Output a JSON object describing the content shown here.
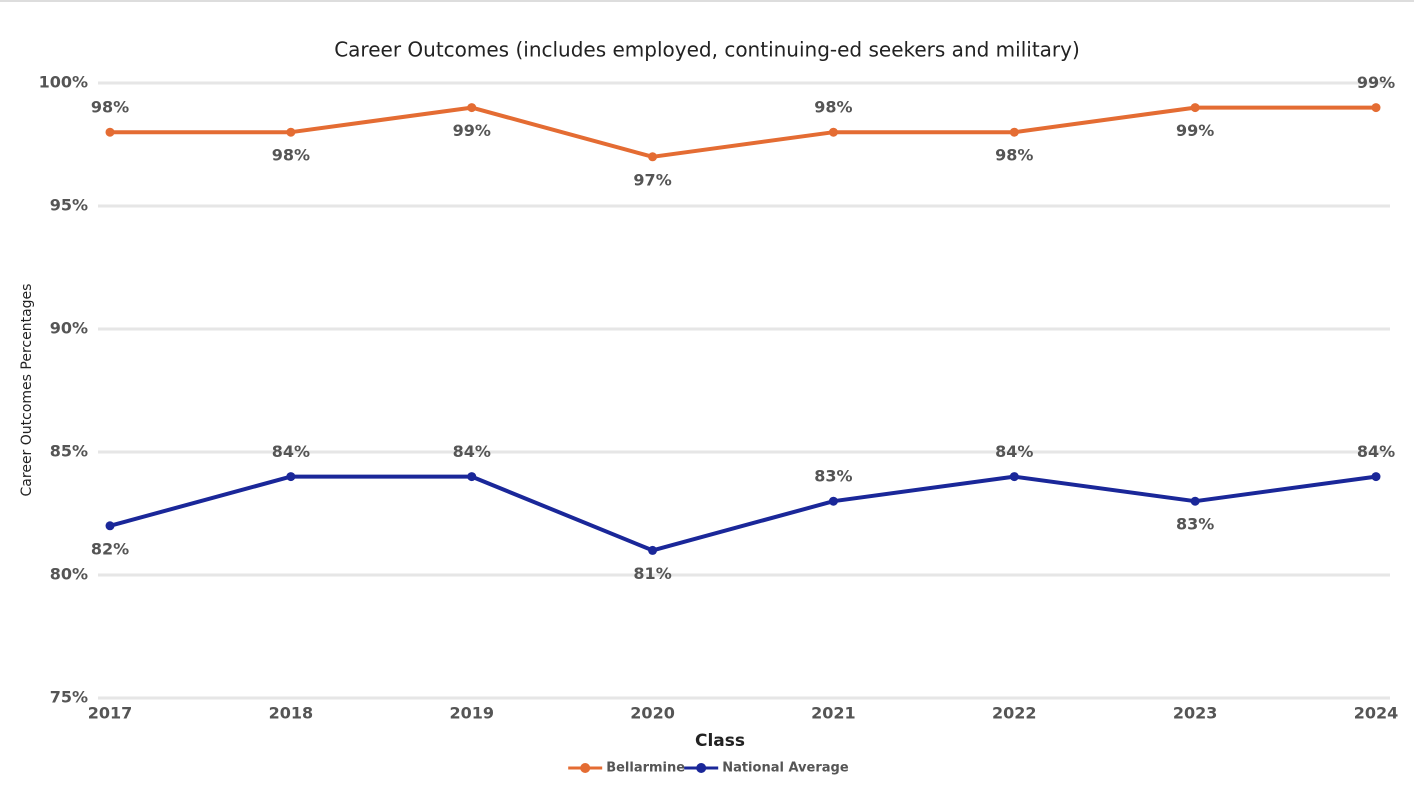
{
  "chart_data": {
    "type": "line",
    "title": "Career Outcomes (includes employed, continuing-ed seekers and military)",
    "x_label": "Class",
    "y_label": "Career Outcomes Percentages",
    "categories": [
      "2017",
      "2018",
      "2019",
      "2020",
      "2021",
      "2022",
      "2023",
      "2024"
    ],
    "series": [
      {
        "name": "Bellarmine",
        "color": "#e46c33",
        "values": [
          98,
          98,
          99,
          97,
          98,
          98,
          99,
          99
        ],
        "value_labels": [
          "98%",
          "98%",
          "99%",
          "97%",
          "98%",
          "98%",
          "99%",
          "99%"
        ]
      },
      {
        "name": "National Average",
        "color": "#1a2799",
        "values": [
          82,
          84,
          84,
          81,
          83,
          84,
          83,
          84
        ],
        "value_labels": [
          "82%",
          "84%",
          "84%",
          "81%",
          "83%",
          "84%",
          "83%",
          "84%"
        ]
      }
    ],
    "ylim": [
      75,
      100
    ],
    "yticks": [
      {
        "value": 75,
        "label": "75%"
      },
      {
        "value": 80,
        "label": "80%"
      },
      {
        "value": 85,
        "label": "85%"
      },
      {
        "value": 90,
        "label": "90%"
      },
      {
        "value": 95,
        "label": "95%"
      },
      {
        "value": 100,
        "label": "100%"
      }
    ],
    "grid": true,
    "legend": "bottom"
  }
}
